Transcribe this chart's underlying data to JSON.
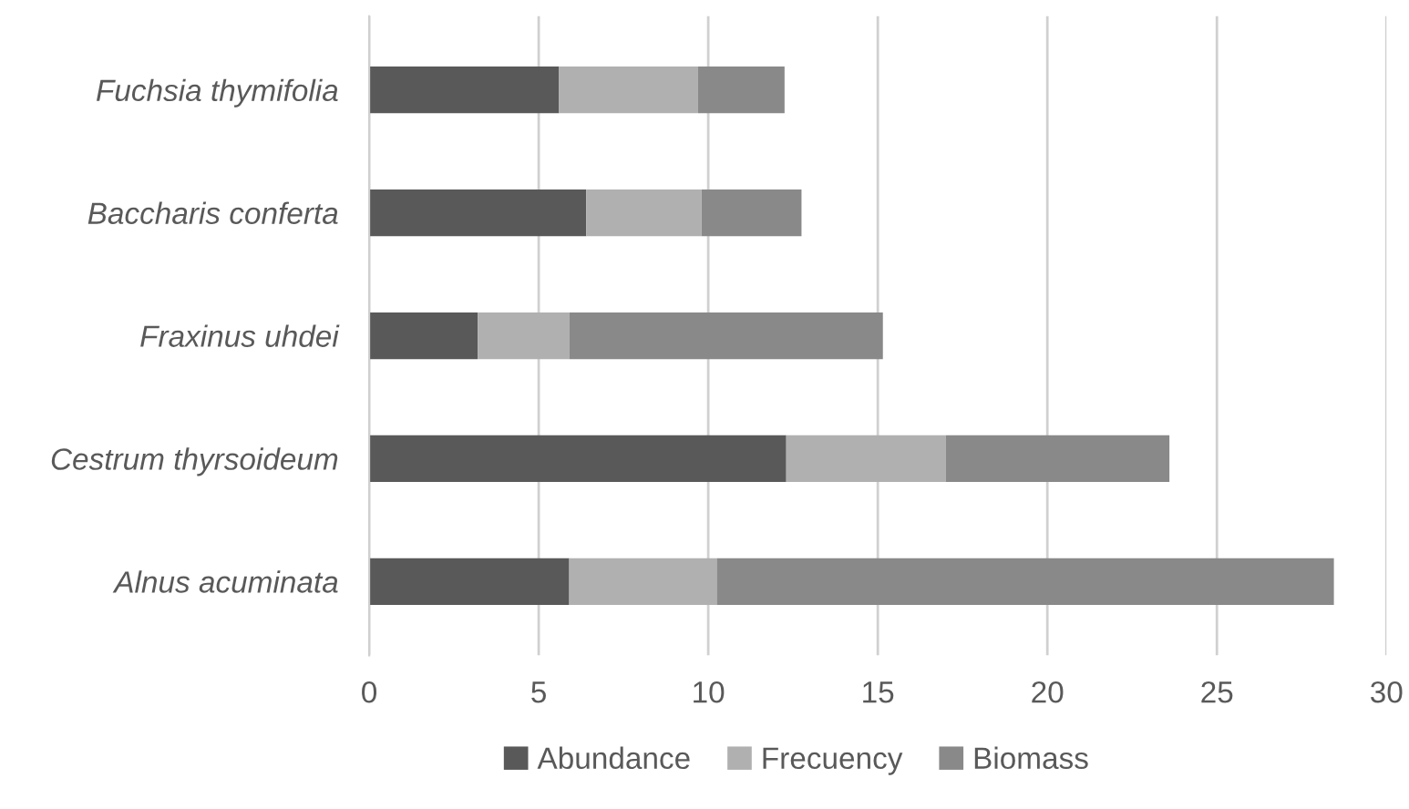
{
  "chart_data": {
    "type": "bar",
    "orientation": "horizontal",
    "stacked": true,
    "categories": [
      "Fuchsia thymifolia",
      "Baccharis conferta",
      "Fraxinus uhdei",
      "Cestrum thyrsoideum",
      "Alnus acuminata"
    ],
    "series": [
      {
        "name": "Abundance",
        "color": "#595959",
        "values": [
          5.6,
          6.4,
          3.2,
          12.3,
          5.9
        ]
      },
      {
        "name": "Frecuency",
        "color": "#b0b0b0",
        "values": [
          4.1,
          3.4,
          2.7,
          4.7,
          4.35
        ]
      },
      {
        "name": "Biomass",
        "color": "#898989",
        "values": [
          2.55,
          2.95,
          9.25,
          6.6,
          18.2
        ]
      }
    ],
    "xlim": [
      0,
      30
    ],
    "xticks": [
      0,
      5,
      10,
      15,
      20,
      25,
      30
    ],
    "grid": "x",
    "legend": "bottom"
  }
}
